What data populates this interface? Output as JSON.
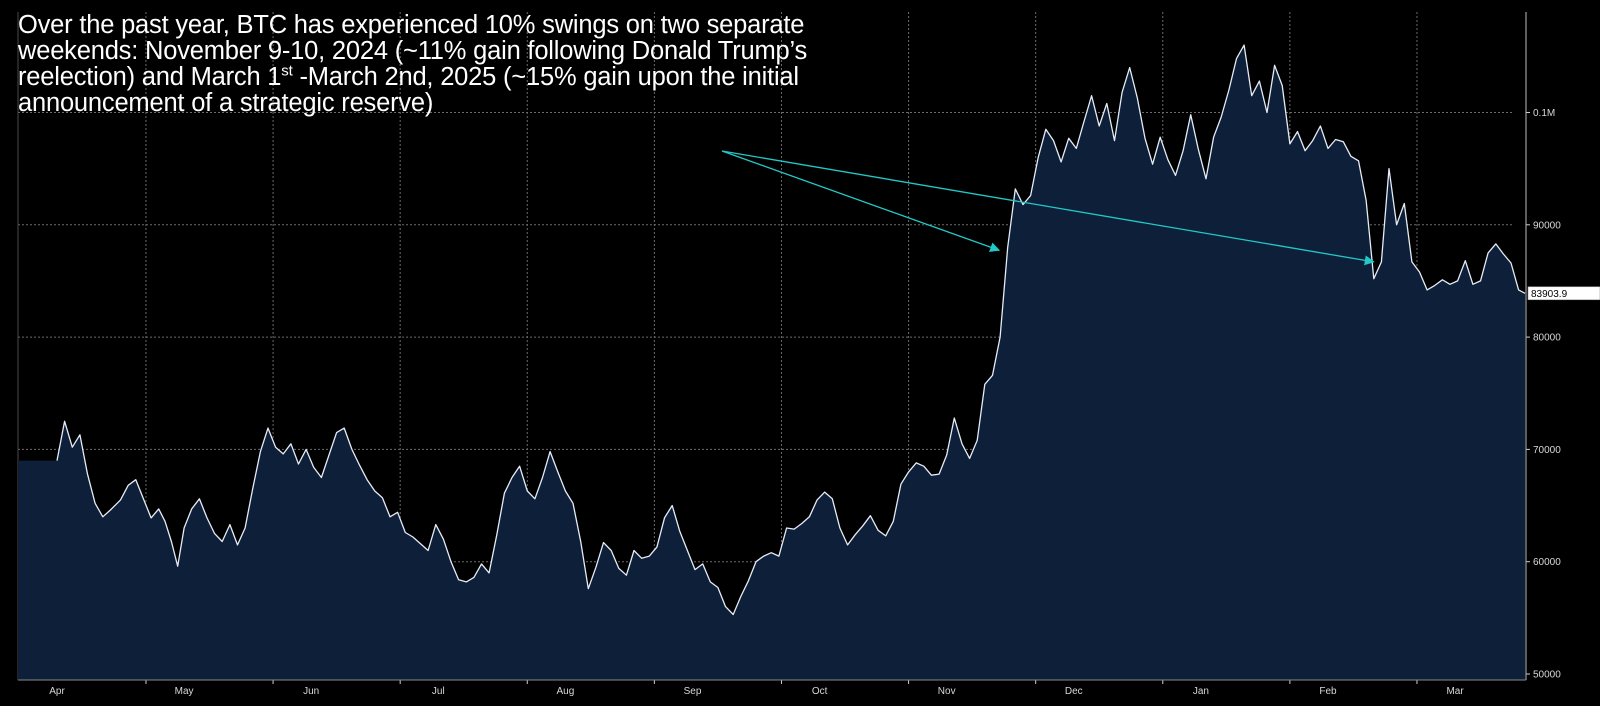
{
  "annotation": {
    "part1": "Over the past year, BTC has experienced 10% swings on two separate weekends: November 9-10, 2024 (~11% gain following Donald Trump’s reelection) and March 1",
    "sup": "st",
    "part2": " -March 2nd, 2025 (~15% gain upon the initial announcement of a strategic reserve)"
  },
  "colors": {
    "background": "#000000",
    "area_fill": "#0e1f3a",
    "line": "#e6ecf5",
    "grid": "#6b6b6b",
    "arrow": "#22c9c9",
    "axis_text": "#d8d8d8",
    "last_price_bg": "#ffffff"
  },
  "chart_data": {
    "type": "area",
    "title": "",
    "xlabel": "",
    "ylabel": "",
    "ylim": [
      50000,
      109500
    ],
    "y_ticks": [
      {
        "value": 50000,
        "label": "50000"
      },
      {
        "value": 60000,
        "label": "60000"
      },
      {
        "value": 70000,
        "label": "70000"
      },
      {
        "value": 80000,
        "label": "80000"
      },
      {
        "value": 90000,
        "label": "90000"
      },
      {
        "value": 100000,
        "label": "0.1M"
      }
    ],
    "x_ticks": [
      "Apr",
      "May",
      "Jun",
      "Jul",
      "Aug",
      "Sep",
      "Oct",
      "Nov",
      "Dec",
      "Jan",
      "Feb",
      "Mar"
    ],
    "last_price": {
      "value": 83903.9,
      "label": "83903.9"
    },
    "series": [
      {
        "name": "BTC",
        "x_unit": "months since Apr 1, 2024",
        "points": [
          [
            0.0,
            69000
          ],
          [
            0.06,
            72500
          ],
          [
            0.12,
            70200
          ],
          [
            0.18,
            71300
          ],
          [
            0.24,
            67800
          ],
          [
            0.3,
            65200
          ],
          [
            0.36,
            64000
          ],
          [
            0.42,
            64600
          ],
          [
            0.5,
            65500
          ],
          [
            0.56,
            66800
          ],
          [
            0.62,
            67300
          ],
          [
            0.68,
            65600
          ],
          [
            0.74,
            63900
          ],
          [
            0.8,
            64700
          ],
          [
            0.85,
            63600
          ],
          [
            0.9,
            61800
          ],
          [
            0.95,
            59600
          ],
          [
            1.0,
            63000
          ],
          [
            1.06,
            64700
          ],
          [
            1.12,
            65600
          ],
          [
            1.18,
            63900
          ],
          [
            1.24,
            62500
          ],
          [
            1.3,
            61800
          ],
          [
            1.36,
            63300
          ],
          [
            1.42,
            61500
          ],
          [
            1.48,
            63000
          ],
          [
            1.54,
            66500
          ],
          [
            1.6,
            69800
          ],
          [
            1.66,
            71900
          ],
          [
            1.72,
            70200
          ],
          [
            1.78,
            69600
          ],
          [
            1.84,
            70500
          ],
          [
            1.9,
            68700
          ],
          [
            1.96,
            70000
          ],
          [
            2.02,
            68400
          ],
          [
            2.08,
            67500
          ],
          [
            2.14,
            69500
          ],
          [
            2.2,
            71500
          ],
          [
            2.26,
            71900
          ],
          [
            2.32,
            70000
          ],
          [
            2.38,
            68600
          ],
          [
            2.44,
            67300
          ],
          [
            2.5,
            66300
          ],
          [
            2.56,
            65700
          ],
          [
            2.62,
            64000
          ],
          [
            2.68,
            64400
          ],
          [
            2.74,
            62600
          ],
          [
            2.8,
            62200
          ],
          [
            2.86,
            61600
          ],
          [
            2.92,
            61000
          ],
          [
            2.98,
            63300
          ],
          [
            3.04,
            62000
          ],
          [
            3.1,
            60000
          ],
          [
            3.16,
            58400
          ],
          [
            3.22,
            58200
          ],
          [
            3.28,
            58600
          ],
          [
            3.34,
            59800
          ],
          [
            3.4,
            59000
          ],
          [
            3.46,
            62400
          ],
          [
            3.52,
            66100
          ],
          [
            3.58,
            67500
          ],
          [
            3.64,
            68500
          ],
          [
            3.7,
            66300
          ],
          [
            3.76,
            65600
          ],
          [
            3.82,
            67500
          ],
          [
            3.88,
            69800
          ],
          [
            3.94,
            68000
          ],
          [
            4.0,
            66300
          ],
          [
            4.06,
            65200
          ],
          [
            4.12,
            61800
          ],
          [
            4.18,
            57600
          ],
          [
            4.24,
            59500
          ],
          [
            4.3,
            61700
          ],
          [
            4.36,
            61000
          ],
          [
            4.42,
            59400
          ],
          [
            4.48,
            58800
          ],
          [
            4.54,
            61000
          ],
          [
            4.6,
            60300
          ],
          [
            4.66,
            60500
          ],
          [
            4.72,
            61300
          ],
          [
            4.78,
            63900
          ],
          [
            4.84,
            65000
          ],
          [
            4.9,
            62700
          ],
          [
            4.96,
            61000
          ],
          [
            5.02,
            59300
          ],
          [
            5.08,
            59800
          ],
          [
            5.14,
            58200
          ],
          [
            5.2,
            57700
          ],
          [
            5.26,
            56000
          ],
          [
            5.32,
            55300
          ],
          [
            5.38,
            56900
          ],
          [
            5.44,
            58300
          ],
          [
            5.5,
            60000
          ],
          [
            5.56,
            60500
          ],
          [
            5.62,
            60800
          ],
          [
            5.68,
            60500
          ],
          [
            5.74,
            63000
          ],
          [
            5.8,
            62900
          ],
          [
            5.86,
            63400
          ],
          [
            5.92,
            64000
          ],
          [
            5.98,
            65500
          ],
          [
            6.04,
            66200
          ],
          [
            6.1,
            65600
          ],
          [
            6.16,
            63000
          ],
          [
            6.22,
            61500
          ],
          [
            6.28,
            62400
          ],
          [
            6.34,
            63200
          ],
          [
            6.4,
            64100
          ],
          [
            6.46,
            62800
          ],
          [
            6.52,
            62300
          ],
          [
            6.58,
            63600
          ],
          [
            6.64,
            66900
          ],
          [
            6.7,
            68000
          ],
          [
            6.76,
            68800
          ],
          [
            6.82,
            68500
          ],
          [
            6.88,
            67700
          ],
          [
            6.94,
            67800
          ],
          [
            7.0,
            69500
          ],
          [
            7.06,
            72800
          ],
          [
            7.12,
            70500
          ],
          [
            7.18,
            69200
          ],
          [
            7.24,
            70800
          ],
          [
            7.3,
            75800
          ],
          [
            7.36,
            76600
          ],
          [
            7.42,
            80000
          ],
          [
            7.48,
            88000
          ],
          [
            7.54,
            93200
          ],
          [
            7.6,
            91800
          ],
          [
            7.66,
            92600
          ],
          [
            7.72,
            96000
          ],
          [
            7.78,
            98500
          ],
          [
            7.84,
            97500
          ],
          [
            7.9,
            95600
          ],
          [
            7.96,
            97700
          ],
          [
            8.02,
            96800
          ],
          [
            8.08,
            99200
          ],
          [
            8.14,
            101500
          ],
          [
            8.2,
            98800
          ],
          [
            8.26,
            100800
          ],
          [
            8.32,
            97500
          ],
          [
            8.38,
            101800
          ],
          [
            8.44,
            104000
          ],
          [
            8.5,
            101300
          ],
          [
            8.56,
            97700
          ],
          [
            8.62,
            95400
          ],
          [
            8.68,
            97800
          ],
          [
            8.74,
            95800
          ],
          [
            8.8,
            94400
          ],
          [
            8.86,
            96600
          ],
          [
            8.92,
            99800
          ],
          [
            8.98,
            96700
          ],
          [
            9.04,
            94100
          ],
          [
            9.1,
            97800
          ],
          [
            9.16,
            99600
          ],
          [
            9.22,
            102000
          ],
          [
            9.28,
            104800
          ],
          [
            9.34,
            106000
          ],
          [
            9.4,
            101500
          ],
          [
            9.46,
            102800
          ],
          [
            9.52,
            100000
          ],
          [
            9.58,
            104200
          ],
          [
            9.64,
            102400
          ],
          [
            9.7,
            97200
          ],
          [
            9.76,
            98300
          ],
          [
            9.82,
            96600
          ],
          [
            9.88,
            97500
          ],
          [
            9.94,
            98800
          ],
          [
            10.0,
            96800
          ],
          [
            10.06,
            97600
          ],
          [
            10.12,
            97400
          ],
          [
            10.18,
            96100
          ],
          [
            10.24,
            95700
          ],
          [
            10.3,
            92200
          ],
          [
            10.36,
            85200
          ],
          [
            10.42,
            86700
          ],
          [
            10.48,
            95000
          ],
          [
            10.54,
            90000
          ],
          [
            10.6,
            91900
          ],
          [
            10.66,
            86700
          ],
          [
            10.72,
            85800
          ],
          [
            10.78,
            84200
          ],
          [
            10.84,
            84600
          ],
          [
            10.9,
            85100
          ],
          [
            10.96,
            84700
          ],
          [
            11.02,
            85000
          ],
          [
            11.08,
            86800
          ],
          [
            11.14,
            84700
          ],
          [
            11.2,
            85000
          ],
          [
            11.26,
            87500
          ],
          [
            11.32,
            88300
          ],
          [
            11.38,
            87400
          ],
          [
            11.44,
            86600
          ],
          [
            11.5,
            84200
          ],
          [
            11.55,
            83903.9
          ]
        ]
      }
    ],
    "annotations": [
      {
        "type": "arrow",
        "label": "November 9-10, 2024 (~11% gain following Donald Trump’s reelection)",
        "to_x": 7.46,
        "to_y": 88000
      },
      {
        "type": "arrow",
        "label": "March 1st -March 2nd, 2025 (~15% gain upon the initial announcement of a strategic reserve)",
        "to_x": 10.36,
        "to_y": 86700
      }
    ]
  }
}
